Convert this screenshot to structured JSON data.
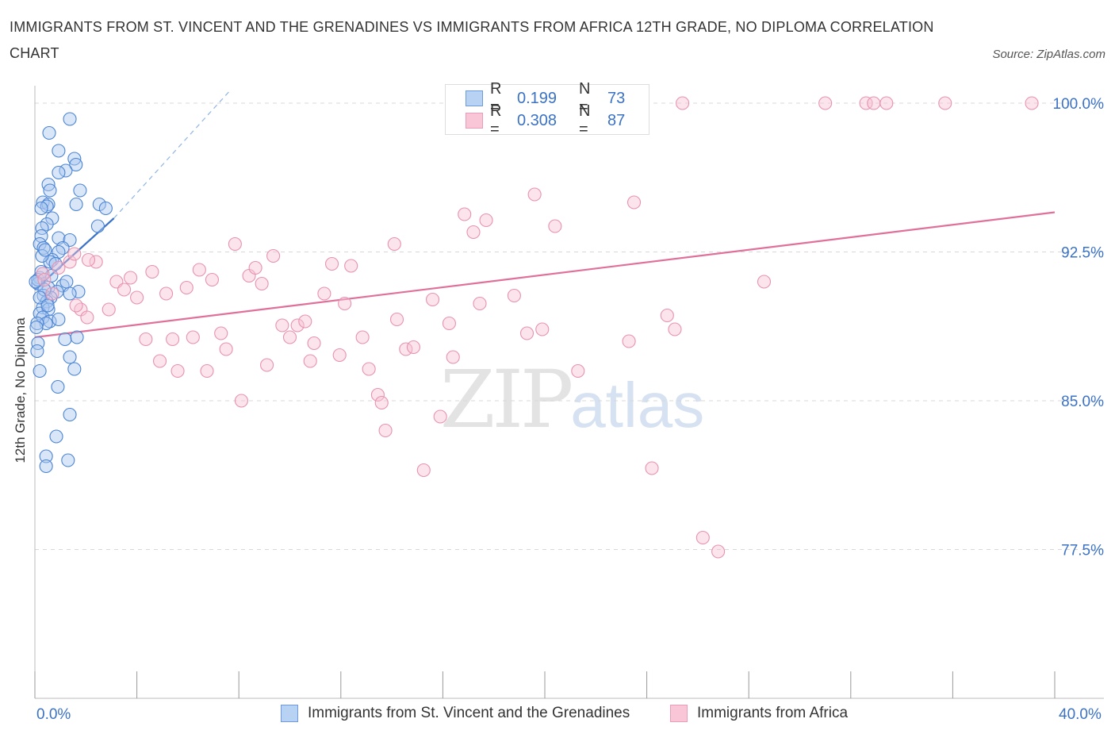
{
  "header": {
    "title": "IMMIGRANTS FROM ST. VINCENT AND THE GRENADINES VS IMMIGRANTS FROM AFRICA 12TH GRADE, NO DIPLOMA CORRELATION CHART",
    "source": "Source: ZipAtlas.com"
  },
  "watermark": {
    "zip": "ZIP",
    "atlas": "atlas"
  },
  "legend_top": {
    "rows": [
      {
        "r_label": "R =",
        "r_value": "0.199",
        "n_label": "N =",
        "n_value": "73"
      },
      {
        "r_label": "R =",
        "r_value": "0.308",
        "n_label": "N =",
        "n_value": "87"
      }
    ]
  },
  "legend_bottom": {
    "items": [
      {
        "label": "Immigrants from St. Vincent and the Grenadines"
      },
      {
        "label": "Immigrants from Africa"
      }
    ]
  },
  "colors": {
    "blue_fill": "#aac8f0",
    "blue_stroke": "#4a84d4",
    "blue_line": "#3a72c8",
    "pink_fill": "#f6c3d4",
    "pink_stroke": "#e892ae",
    "pink_line": "#e0709a",
    "tick_label": "#3b72c4",
    "grid": "#d8d8d8"
  },
  "chart_data": {
    "type": "scatter",
    "title": "IMMIGRANTS FROM ST. VINCENT AND THE GRENADINES VS IMMIGRANTS FROM AFRICA 12TH GRADE, NO DIPLOMA CORRELATION CHART",
    "xlabel": "",
    "ylabel": "12th Grade, No Diploma",
    "xlim": [
      0,
      40
    ],
    "ylim": [
      70,
      100.6
    ],
    "x_tick_labels": [
      "0.0%",
      "40.0%"
    ],
    "y_ticks": [
      77.5,
      85.0,
      92.5,
      100.0
    ],
    "y_tick_labels": [
      "77.5%",
      "85.0%",
      "92.5%",
      "100.0%"
    ],
    "grid": true,
    "legend_position": "top-center",
    "series": [
      {
        "name": "Immigrants from St. Vincent and the Grenadines",
        "r": 0.199,
        "n": 73,
        "trend": {
          "x0": 0.0,
          "y0": 90.6,
          "x1": 3.1,
          "y1": 94.2
        },
        "trend_dashed": {
          "x0": 3.1,
          "y0": 94.2,
          "x1": 7.7,
          "y1": 100.7
        },
        "points": [
          [
            1.37,
            99.2
          ],
          [
            0.56,
            98.5
          ],
          [
            0.93,
            97.6
          ],
          [
            1.55,
            97.2
          ],
          [
            1.61,
            96.9
          ],
          [
            1.21,
            96.6
          ],
          [
            0.93,
            96.5
          ],
          [
            0.53,
            95.9
          ],
          [
            0.59,
            95.6
          ],
          [
            1.77,
            95.6
          ],
          [
            0.31,
            95.0
          ],
          [
            0.53,
            94.9
          ],
          [
            0.47,
            94.8
          ],
          [
            0.25,
            94.7
          ],
          [
            1.62,
            94.9
          ],
          [
            2.53,
            94.9
          ],
          [
            2.78,
            94.7
          ],
          [
            0.68,
            94.2
          ],
          [
            0.47,
            93.9
          ],
          [
            0.28,
            93.7
          ],
          [
            2.47,
            93.8
          ],
          [
            0.25,
            93.3
          ],
          [
            0.93,
            93.2
          ],
          [
            1.37,
            93.1
          ],
          [
            0.19,
            92.9
          ],
          [
            0.34,
            92.7
          ],
          [
            1.09,
            92.7
          ],
          [
            0.93,
            92.5
          ],
          [
            0.68,
            92.1
          ],
          [
            0.59,
            92.0
          ],
          [
            0.81,
            91.9
          ],
          [
            0.19,
            91.2
          ],
          [
            0.12,
            90.9
          ],
          [
            1.09,
            90.8
          ],
          [
            0.53,
            90.7
          ],
          [
            1.71,
            90.5
          ],
          [
            0.87,
            90.5
          ],
          [
            1.37,
            90.4
          ],
          [
            0.34,
            90.3
          ],
          [
            0.62,
            90.2
          ],
          [
            0.47,
            90.0
          ],
          [
            0.31,
            89.7
          ],
          [
            0.53,
            89.6
          ],
          [
            0.19,
            89.4
          ],
          [
            0.31,
            89.2
          ],
          [
            0.59,
            89.0
          ],
          [
            0.44,
            88.9
          ],
          [
            0.12,
            87.9
          ],
          [
            1.18,
            88.1
          ],
          [
            1.65,
            88.2
          ],
          [
            0.09,
            87.5
          ],
          [
            1.37,
            87.2
          ],
          [
            0.19,
            86.5
          ],
          [
            1.55,
            86.6
          ],
          [
            0.9,
            85.7
          ],
          [
            1.37,
            84.3
          ],
          [
            0.84,
            83.2
          ],
          [
            0.44,
            82.2
          ],
          [
            1.3,
            82.0
          ],
          [
            0.44,
            81.7
          ],
          [
            0.12,
            91.1
          ],
          [
            0.37,
            90.6
          ],
          [
            1.24,
            91.0
          ],
          [
            0.28,
            92.3
          ],
          [
            0.19,
            90.2
          ],
          [
            0.65,
            91.3
          ],
          [
            0.93,
            89.1
          ],
          [
            0.5,
            89.8
          ],
          [
            0.09,
            88.9
          ],
          [
            0.06,
            88.7
          ],
          [
            0.03,
            91.0
          ],
          [
            0.4,
            92.6
          ],
          [
            0.25,
            91.5
          ]
        ]
      },
      {
        "name": "Immigrants from Africa",
        "r": 0.308,
        "n": 87,
        "trend": {
          "x0": 0.0,
          "y0": 88.2,
          "x1": 40.0,
          "y1": 94.5
        },
        "points": [
          [
            0.31,
            91.4
          ],
          [
            0.37,
            91.1
          ],
          [
            0.93,
            91.7
          ],
          [
            1.37,
            92.0
          ],
          [
            1.55,
            92.4
          ],
          [
            2.4,
            92.0
          ],
          [
            0.68,
            90.4
          ],
          [
            1.8,
            89.6
          ],
          [
            2.05,
            89.2
          ],
          [
            2.9,
            89.6
          ],
          [
            3.2,
            91.0
          ],
          [
            3.5,
            90.6
          ],
          [
            3.75,
            91.2
          ],
          [
            4.0,
            90.2
          ],
          [
            4.35,
            88.1
          ],
          [
            4.6,
            91.5
          ],
          [
            4.9,
            87.0
          ],
          [
            5.15,
            90.4
          ],
          [
            5.4,
            88.1
          ],
          [
            5.6,
            86.5
          ],
          [
            5.95,
            90.7
          ],
          [
            6.2,
            88.2
          ],
          [
            6.45,
            91.6
          ],
          [
            6.75,
            86.5
          ],
          [
            6.95,
            91.1
          ],
          [
            7.3,
            88.4
          ],
          [
            7.5,
            87.6
          ],
          [
            7.85,
            92.9
          ],
          [
            8.1,
            85.0
          ],
          [
            8.4,
            91.3
          ],
          [
            8.65,
            91.7
          ],
          [
            8.9,
            90.9
          ],
          [
            9.1,
            86.8
          ],
          [
            9.35,
            92.3
          ],
          [
            9.7,
            88.8
          ],
          [
            10.0,
            88.2
          ],
          [
            10.3,
            88.8
          ],
          [
            10.6,
            89.0
          ],
          [
            10.8,
            87.0
          ],
          [
            10.95,
            87.9
          ],
          [
            11.35,
            90.4
          ],
          [
            11.65,
            91.9
          ],
          [
            11.95,
            87.3
          ],
          [
            12.15,
            89.9
          ],
          [
            12.4,
            91.8
          ],
          [
            12.85,
            88.2
          ],
          [
            13.1,
            86.6
          ],
          [
            13.45,
            85.3
          ],
          [
            13.6,
            84.9
          ],
          [
            13.75,
            83.5
          ],
          [
            14.1,
            92.9
          ],
          [
            14.2,
            89.1
          ],
          [
            14.55,
            87.6
          ],
          [
            14.85,
            87.7
          ],
          [
            15.25,
            81.5
          ],
          [
            15.6,
            90.1
          ],
          [
            15.9,
            84.2
          ],
          [
            16.25,
            88.9
          ],
          [
            16.4,
            87.2
          ],
          [
            16.85,
            94.4
          ],
          [
            17.2,
            93.5
          ],
          [
            17.45,
            89.9
          ],
          [
            17.7,
            94.1
          ],
          [
            18.8,
            90.3
          ],
          [
            19.3,
            88.4
          ],
          [
            19.6,
            95.4
          ],
          [
            19.9,
            88.6
          ],
          [
            20.4,
            93.8
          ],
          [
            21.3,
            86.5
          ],
          [
            22.2,
            100.0
          ],
          [
            23.3,
            88.0
          ],
          [
            23.5,
            95.0
          ],
          [
            24.2,
            81.6
          ],
          [
            24.8,
            89.3
          ],
          [
            25.1,
            88.6
          ],
          [
            25.4,
            100.0
          ],
          [
            26.2,
            78.1
          ],
          [
            26.8,
            77.4
          ],
          [
            28.6,
            91.0
          ],
          [
            31.0,
            100.0
          ],
          [
            32.6,
            100.0
          ],
          [
            32.9,
            100.0
          ],
          [
            33.4,
            100.0
          ],
          [
            35.7,
            100.0
          ],
          [
            39.1,
            100.0
          ],
          [
            1.62,
            89.8
          ],
          [
            2.1,
            92.1
          ]
        ]
      }
    ]
  }
}
